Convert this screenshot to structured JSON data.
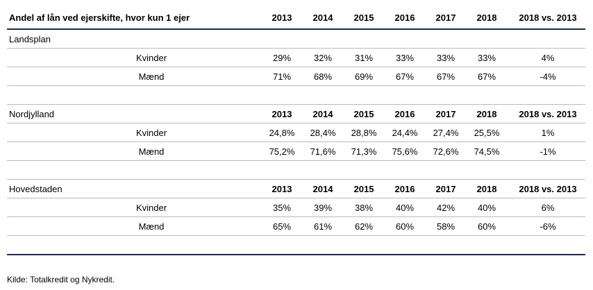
{
  "table": {
    "title": "Andel af lån ved ejerskifte, hvor kun 1 ejer",
    "columns": [
      "2013",
      "2014",
      "2015",
      "2016",
      "2017",
      "2018",
      "2018 vs. 2013"
    ],
    "sections": [
      {
        "region": "Landsplan",
        "show_columns": false,
        "rows": [
          {
            "label": "Kvinder",
            "values": [
              "29%",
              "32%",
              "31%",
              "33%",
              "33%",
              "33%",
              "4%"
            ]
          },
          {
            "label": "Mænd",
            "values": [
              "71%",
              "68%",
              "69%",
              "67%",
              "67%",
              "67%",
              "-4%"
            ]
          }
        ]
      },
      {
        "region": "Nordjylland",
        "show_columns": true,
        "rows": [
          {
            "label": "Kvinder",
            "values": [
              "24,8%",
              "28,4%",
              "28,8%",
              "24,4%",
              "27,4%",
              "25,5%",
              "1%"
            ]
          },
          {
            "label": "Mænd",
            "values": [
              "75,2%",
              "71,6%",
              "71,3%",
              "75,6%",
              "72,6%",
              "74,5%",
              "-1%"
            ]
          }
        ]
      },
      {
        "region": "Hovedstaden",
        "show_columns": true,
        "rows": [
          {
            "label": "Kvinder",
            "values": [
              "35%",
              "39%",
              "38%",
              "40%",
              "42%",
              "40%",
              "6%"
            ]
          },
          {
            "label": "Mænd",
            "values": [
              "65%",
              "61%",
              "62%",
              "60%",
              "58%",
              "60%",
              "-6%"
            ]
          }
        ]
      }
    ]
  },
  "source": "Kilde: Totalkredit og Nykredit."
}
